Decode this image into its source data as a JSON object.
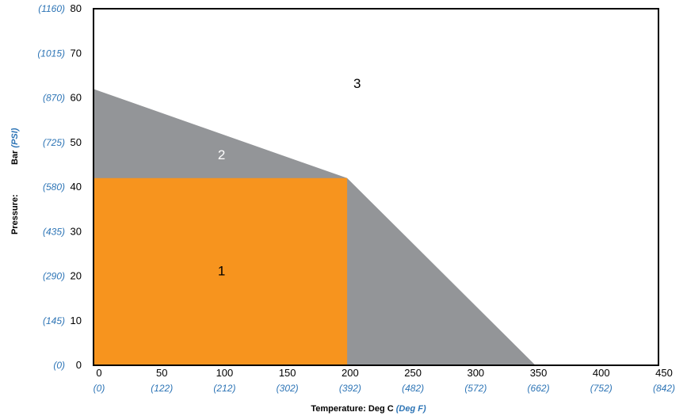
{
  "chart_data": {
    "type": "area",
    "x_axis": {
      "title_main": "Temperature: Deg C",
      "title_alt": "(Deg F)",
      "range": [
        0,
        450
      ],
      "ticks": [
        {
          "value": 0,
          "label": "0",
          "alt": "(0)"
        },
        {
          "value": 50,
          "label": "50",
          "alt": "(122)"
        },
        {
          "value": 100,
          "label": "100",
          "alt": "(212)"
        },
        {
          "value": 150,
          "label": "150",
          "alt": "(302)"
        },
        {
          "value": 200,
          "label": "200",
          "alt": "(392)"
        },
        {
          "value": 250,
          "label": "250",
          "alt": "(482)"
        },
        {
          "value": 300,
          "label": "300",
          "alt": "(572)"
        },
        {
          "value": 350,
          "label": "350",
          "alt": "(662)"
        },
        {
          "value": 400,
          "label": "400",
          "alt": "(752)"
        },
        {
          "value": 450,
          "label": "450",
          "alt": "(842)"
        }
      ]
    },
    "y_axis": {
      "title_prefix": "Pressure:",
      "title_main": "Bar",
      "title_alt": "(PSI)",
      "range": [
        0,
        80
      ],
      "ticks": [
        {
          "value": 0,
          "label": "0",
          "alt": "(0)"
        },
        {
          "value": 10,
          "label": "10",
          "alt": "(145)"
        },
        {
          "value": 20,
          "label": "20",
          "alt": "(290)"
        },
        {
          "value": 30,
          "label": "30",
          "alt": "(435)"
        },
        {
          "value": 40,
          "label": "40",
          "alt": "(580)"
        },
        {
          "value": 50,
          "label": "50",
          "alt": "(725)"
        },
        {
          "value": 60,
          "label": "60",
          "alt": "(870)"
        },
        {
          "value": 70,
          "label": "70",
          "alt": "(1015)"
        },
        {
          "value": 80,
          "label": "80",
          "alt": "(1160)"
        }
      ]
    },
    "zones": [
      {
        "label": "2",
        "color": "#939598",
        "points": [
          [
            0,
            0
          ],
          [
            0,
            62
          ],
          [
            202,
            42
          ],
          [
            352,
            0
          ]
        ],
        "label_at": [
          102,
          47
        ],
        "label_color": "#ffffff"
      },
      {
        "label": "1",
        "color": "#F7941E",
        "points": [
          [
            0,
            0
          ],
          [
            0,
            42
          ],
          [
            202,
            42
          ],
          [
            202,
            0
          ]
        ],
        "label_at": [
          102,
          21
        ],
        "label_color": "#000000"
      },
      {
        "label": "3",
        "label_at": [
          210,
          63
        ],
        "label_color": "#000000"
      }
    ],
    "grid": false,
    "legend": "none"
  }
}
